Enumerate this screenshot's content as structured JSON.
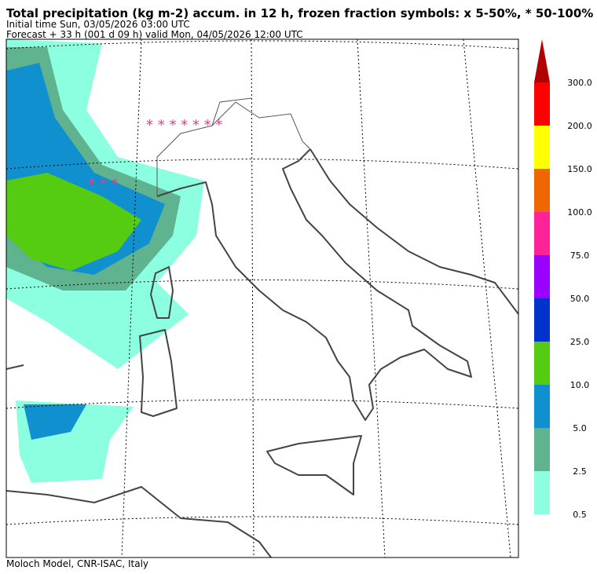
{
  "header": {
    "title": "Total precipitation (kg m-2) accum. in 12 h, frozen fraction symbols: x 5-50%, * 50-100%",
    "initial_time": "Initial time  Sun, 03/05/2026  03:00 UTC",
    "forecast": "Forecast  +  33 h  (001 d 09 h)  valid Mon, 04/05/2026 12:00 UTC"
  },
  "footer": "Moloch Model, CNR-ISAC, Italy",
  "colorbar": {
    "levels": [
      0.5,
      2.5,
      {
        "value": 5,
        "label": "5.0"
      },
      {
        "value": 10,
        "label": "10.0"
      },
      {
        "value": 25,
        "label": "25.0"
      },
      {
        "value": 50,
        "label": "50.0"
      },
      {
        "value": 75,
        "label": "75.0"
      },
      {
        "value": 100,
        "label": "100.0"
      },
      {
        "value": 150,
        "label": "150.0"
      },
      {
        "value": 200,
        "label": "200.0"
      },
      {
        "value": 300,
        "label": "300.0"
      }
    ],
    "colors": [
      "#8cffe0",
      "#60b38f",
      "#1190cf",
      "#55cc11",
      "#0033cc",
      "#9a00ff",
      "#ff2299",
      "#ee6600",
      "#ffff00",
      "#ff0000",
      "#b00000"
    ]
  }
}
